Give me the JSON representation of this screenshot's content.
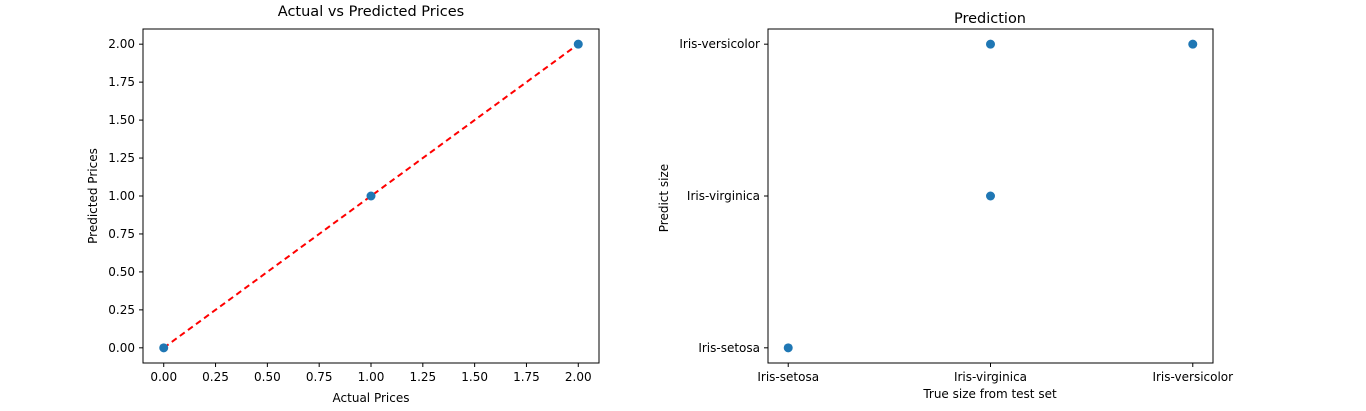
{
  "chart_data": [
    {
      "type": "scatter",
      "title": "Actual vs Predicted Prices",
      "xlabel": "Actual Prices",
      "ylabel": "Predicted Prices",
      "xlim": [
        -0.1,
        2.1
      ],
      "ylim": [
        -0.1,
        2.1
      ],
      "xticks": [
        "0.00",
        "0.25",
        "0.50",
        "0.75",
        "1.00",
        "1.25",
        "1.50",
        "1.75",
        "2.00"
      ],
      "yticks": [
        "0.00",
        "0.25",
        "0.50",
        "0.75",
        "1.00",
        "1.25",
        "1.50",
        "1.75",
        "2.00"
      ],
      "grid": false,
      "series": [
        {
          "points": [
            [
              0,
              0
            ],
            [
              1,
              1
            ],
            [
              2,
              2
            ]
          ],
          "color": "#1f77b4",
          "marker": "circle"
        }
      ],
      "reference_line": {
        "from": [
          0,
          0
        ],
        "to": [
          2,
          2
        ],
        "style": "dashed",
        "color": "#ff0000"
      }
    },
    {
      "type": "scatter",
      "title": "Prediction",
      "xlabel": "True size from test set",
      "ylabel": "Predict size",
      "categories_x": [
        "Iris-setosa",
        "Iris-virginica",
        "Iris-versicolor"
      ],
      "categories_y": [
        "Iris-setosa",
        "Iris-virginica",
        "Iris-versicolor"
      ],
      "grid": false,
      "series": [
        {
          "points": [
            [
              "Iris-setosa",
              "Iris-setosa"
            ],
            [
              "Iris-virginica",
              "Iris-virginica"
            ],
            [
              "Iris-virginica",
              "Iris-versicolor"
            ],
            [
              "Iris-versicolor",
              "Iris-versicolor"
            ]
          ],
          "color": "#1f77b4",
          "marker": "circle"
        }
      ]
    }
  ]
}
